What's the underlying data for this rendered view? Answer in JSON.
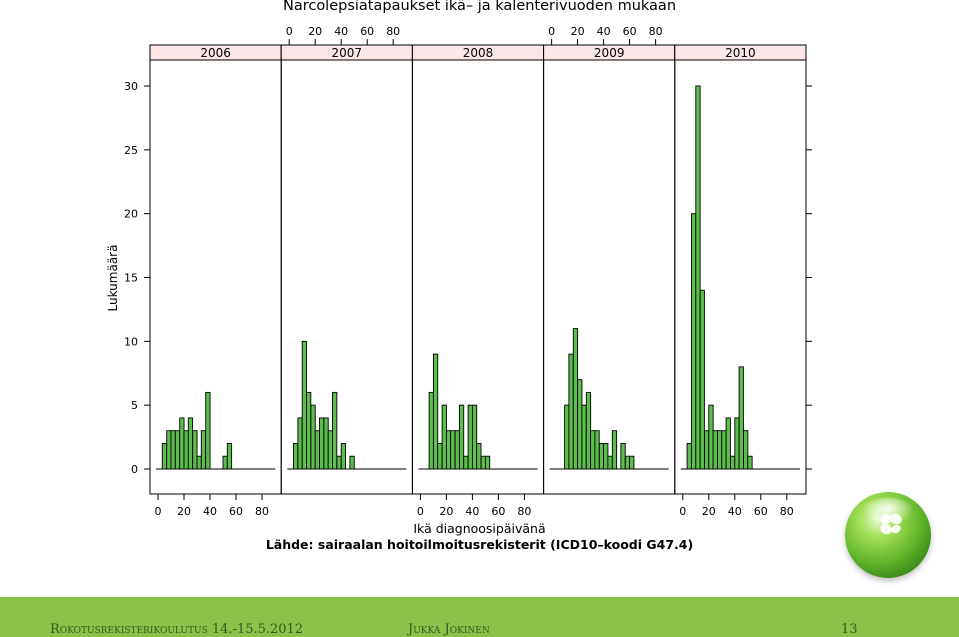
{
  "chart_data": {
    "type": "bar",
    "title": "Narcolepsiatapaukset ikä– ja kalenterivuoden mukaan",
    "xlabel": "Ikä diagnoosipäivänä",
    "ylabel": "Lukumäärä",
    "note": "Lähde: sairaalan hoitoilmoitusrekisterit (ICD10–koodi G47.4)",
    "ylim": [
      0,
      30
    ],
    "xlim": [
      0,
      90
    ],
    "bin_width": 3.33,
    "x_ticks": [
      "0",
      "20",
      "40",
      "60",
      "80"
    ],
    "y_ticks": [
      "0",
      "5",
      "10",
      "15",
      "20",
      "25",
      "30"
    ],
    "bar_color": "#5cbf4c",
    "panels": [
      {
        "year": "2006",
        "bins": [
          {
            "start": 3.3,
            "count": 2
          },
          {
            "start": 6.7,
            "count": 3
          },
          {
            "start": 10.0,
            "count": 3
          },
          {
            "start": 13.3,
            "count": 3
          },
          {
            "start": 16.7,
            "count": 4
          },
          {
            "start": 20.0,
            "count": 3
          },
          {
            "start": 23.3,
            "count": 4
          },
          {
            "start": 26.7,
            "count": 3
          },
          {
            "start": 30.0,
            "count": 1
          },
          {
            "start": 33.3,
            "count": 3
          },
          {
            "start": 36.7,
            "count": 6
          },
          {
            "start": 50.0,
            "count": 1
          },
          {
            "start": 53.3,
            "count": 2
          }
        ]
      },
      {
        "year": "2007",
        "bins": [
          {
            "start": 3.3,
            "count": 2
          },
          {
            "start": 6.7,
            "count": 4
          },
          {
            "start": 10.0,
            "count": 10
          },
          {
            "start": 13.3,
            "count": 6
          },
          {
            "start": 16.7,
            "count": 5
          },
          {
            "start": 20.0,
            "count": 3
          },
          {
            "start": 23.3,
            "count": 4
          },
          {
            "start": 26.7,
            "count": 4
          },
          {
            "start": 30.0,
            "count": 3
          },
          {
            "start": 33.3,
            "count": 6
          },
          {
            "start": 36.7,
            "count": 1
          },
          {
            "start": 40.0,
            "count": 2
          },
          {
            "start": 46.7,
            "count": 1
          }
        ]
      },
      {
        "year": "2008",
        "bins": [
          {
            "start": 6.7,
            "count": 6
          },
          {
            "start": 10.0,
            "count": 9
          },
          {
            "start": 13.3,
            "count": 2
          },
          {
            "start": 16.7,
            "count": 5
          },
          {
            "start": 20.0,
            "count": 3
          },
          {
            "start": 23.3,
            "count": 3
          },
          {
            "start": 26.7,
            "count": 3
          },
          {
            "start": 30.0,
            "count": 5
          },
          {
            "start": 33.3,
            "count": 1
          },
          {
            "start": 36.7,
            "count": 5
          },
          {
            "start": 40.0,
            "count": 5
          },
          {
            "start": 43.3,
            "count": 2
          },
          {
            "start": 46.7,
            "count": 1
          },
          {
            "start": 50.0,
            "count": 1
          }
        ]
      },
      {
        "year": "2009",
        "bins": [
          {
            "start": 10.0,
            "count": 5
          },
          {
            "start": 13.3,
            "count": 9
          },
          {
            "start": 16.7,
            "count": 11
          },
          {
            "start": 20.0,
            "count": 7
          },
          {
            "start": 23.3,
            "count": 5
          },
          {
            "start": 26.7,
            "count": 6
          },
          {
            "start": 30.0,
            "count": 3
          },
          {
            "start": 33.3,
            "count": 3
          },
          {
            "start": 36.7,
            "count": 2
          },
          {
            "start": 40.0,
            "count": 2
          },
          {
            "start": 43.3,
            "count": 1
          },
          {
            "start": 46.7,
            "count": 3
          },
          {
            "start": 53.3,
            "count": 2
          },
          {
            "start": 56.7,
            "count": 1
          },
          {
            "start": 60.0,
            "count": 1
          }
        ]
      },
      {
        "year": "2010",
        "bins": [
          {
            "start": 3.3,
            "count": 2
          },
          {
            "start": 6.7,
            "count": 20
          },
          {
            "start": 10.0,
            "count": 30
          },
          {
            "start": 13.3,
            "count": 14
          },
          {
            "start": 16.7,
            "count": 3
          },
          {
            "start": 20.0,
            "count": 5
          },
          {
            "start": 23.3,
            "count": 3
          },
          {
            "start": 26.7,
            "count": 3
          },
          {
            "start": 30.0,
            "count": 3
          },
          {
            "start": 33.3,
            "count": 4
          },
          {
            "start": 36.7,
            "count": 1
          },
          {
            "start": 40.0,
            "count": 4
          },
          {
            "start": 43.3,
            "count": 8
          },
          {
            "start": 46.7,
            "count": 3
          },
          {
            "start": 50.0,
            "count": 1
          }
        ]
      }
    ]
  },
  "footer": {
    "left": "Rokotusrekisterikoulutus 14.-15.5.2012",
    "center": "Jukka Jokinen",
    "right": "13"
  }
}
